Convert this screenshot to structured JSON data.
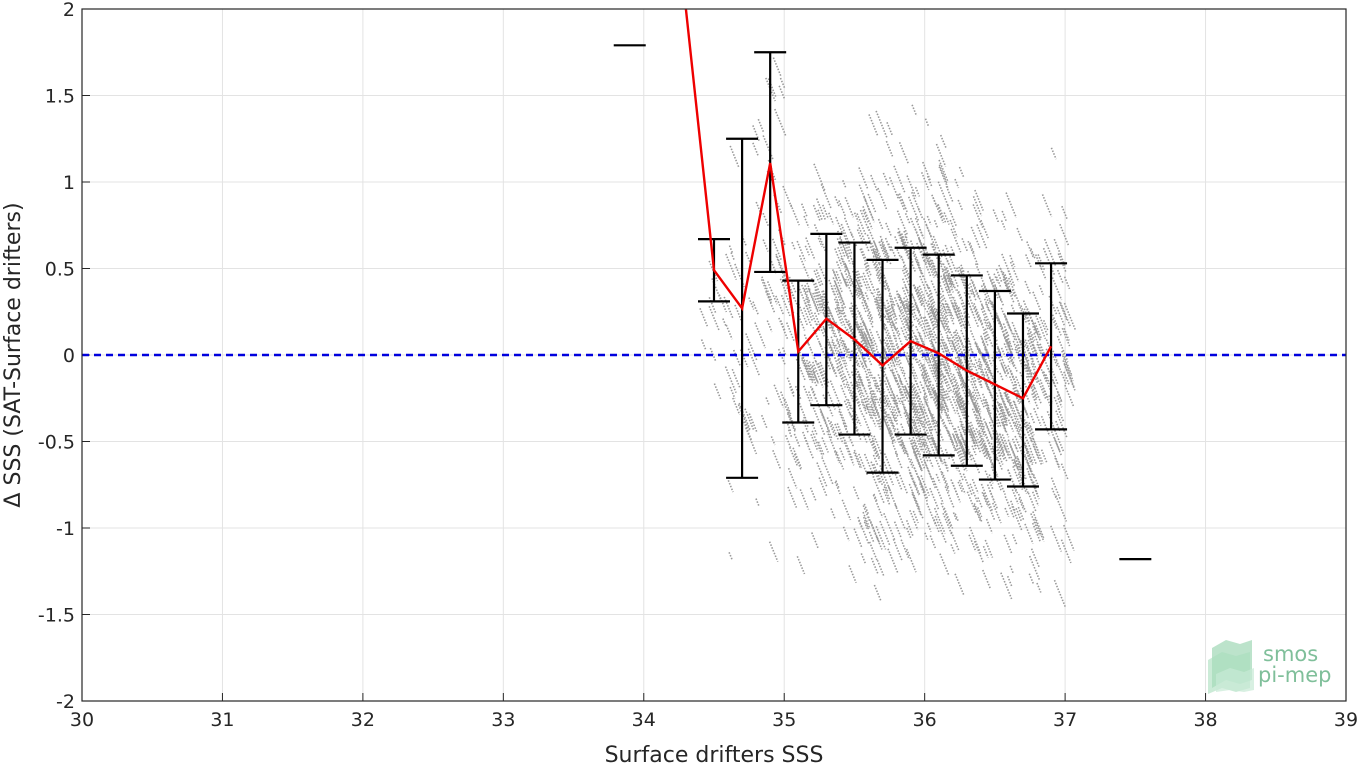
{
  "chart_data": {
    "type": "scatter",
    "xlabel": "Surface drifters SSS",
    "ylabel": "Δ SSS (SAT-Surface drifters)",
    "xlim": [
      30,
      39
    ],
    "ylim": [
      -2,
      2
    ],
    "xticks": [
      "30",
      "31",
      "32",
      "33",
      "34",
      "35",
      "36",
      "37",
      "38",
      "39"
    ],
    "yticks": [
      "2",
      "1.5",
      "1",
      "0.5",
      "0",
      "-0.5",
      "-1",
      "-1.5",
      "-2"
    ],
    "grid": true,
    "zero_line": {
      "y": 0,
      "color": "#0000dd",
      "style": "dashed"
    },
    "scatter_color": "#999999",
    "mean_line_color": "#ee0000",
    "errorbar_color": "#000000",
    "mean_line": {
      "x": [
        34.3,
        34.5,
        34.7,
        34.9,
        35.1,
        35.3,
        35.5,
        35.7,
        35.9,
        36.1,
        36.3,
        36.5,
        36.7,
        36.9
      ],
      "y": [
        2.0,
        0.49,
        0.27,
        1.11,
        0.02,
        0.21,
        0.09,
        -0.06,
        0.08,
        0.01,
        -0.09,
        -0.17,
        -0.25,
        0.05
      ]
    },
    "errorbars": [
      {
        "x": 33.9,
        "low": 1.79,
        "high": 1.79
      },
      {
        "x": 34.5,
        "low": 0.31,
        "high": 0.67
      },
      {
        "x": 34.7,
        "low": -0.71,
        "high": 1.25
      },
      {
        "x": 34.9,
        "low": 0.48,
        "high": 1.75
      },
      {
        "x": 35.1,
        "low": -0.39,
        "high": 0.43
      },
      {
        "x": 35.3,
        "low": -0.29,
        "high": 0.7
      },
      {
        "x": 35.5,
        "low": -0.46,
        "high": 0.65
      },
      {
        "x": 35.7,
        "low": -0.68,
        "high": 0.55
      },
      {
        "x": 35.9,
        "low": -0.46,
        "high": 0.62
      },
      {
        "x": 36.1,
        "low": -0.58,
        "high": 0.58
      },
      {
        "x": 36.3,
        "low": -0.64,
        "high": 0.46
      },
      {
        "x": 36.5,
        "low": -0.72,
        "high": 0.37
      },
      {
        "x": 36.7,
        "low": -0.76,
        "high": 0.24
      },
      {
        "x": 36.9,
        "low": -0.43,
        "high": 0.53
      },
      {
        "x": 37.5,
        "low": -1.18,
        "high": -1.18
      }
    ]
  },
  "logo": {
    "line1": "smos",
    "line2": "pi-mep",
    "color": "#7fbf9a"
  }
}
